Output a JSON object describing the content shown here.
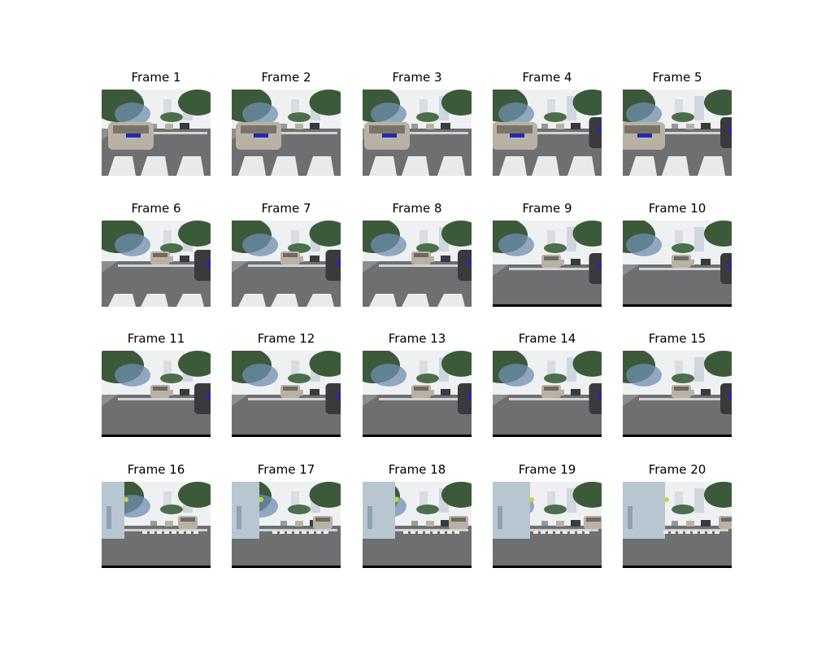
{
  "frames": [
    {
      "title": "Frame 1",
      "scene": "crosswalk-near",
      "bottom_bar": false
    },
    {
      "title": "Frame 2",
      "scene": "crosswalk-near",
      "bottom_bar": false
    },
    {
      "title": "Frame 3",
      "scene": "crosswalk-near",
      "bottom_bar": false
    },
    {
      "title": "Frame 4",
      "scene": "crosswalk-near",
      "bottom_bar": false
    },
    {
      "title": "Frame 5",
      "scene": "crosswalk-near",
      "bottom_bar": false
    },
    {
      "title": "Frame 6",
      "scene": "crosswalk-mid",
      "bottom_bar": false
    },
    {
      "title": "Frame 7",
      "scene": "crosswalk-mid",
      "bottom_bar": false
    },
    {
      "title": "Frame 8",
      "scene": "crosswalk-mid",
      "bottom_bar": false
    },
    {
      "title": "Frame 9",
      "scene": "open-road",
      "bottom_bar": true
    },
    {
      "title": "Frame 10",
      "scene": "open-road",
      "bottom_bar": true
    },
    {
      "title": "Frame 11",
      "scene": "open-road",
      "bottom_bar": true
    },
    {
      "title": "Frame 12",
      "scene": "open-road",
      "bottom_bar": true
    },
    {
      "title": "Frame 13",
      "scene": "open-road",
      "bottom_bar": true
    },
    {
      "title": "Frame 14",
      "scene": "open-road",
      "bottom_bar": true
    },
    {
      "title": "Frame 15",
      "scene": "open-road",
      "bottom_bar": true
    },
    {
      "title": "Frame 16",
      "scene": "building-left",
      "bottom_bar": true
    },
    {
      "title": "Frame 17",
      "scene": "building-left",
      "bottom_bar": true
    },
    {
      "title": "Frame 18",
      "scene": "building-left",
      "bottom_bar": true
    },
    {
      "title": "Frame 19",
      "scene": "building-left",
      "bottom_bar": true
    },
    {
      "title": "Frame 20",
      "scene": "building-left",
      "bottom_bar": true
    }
  ],
  "colors": {
    "sky": "#eef0f2",
    "trees": "#3c5a3a",
    "trees_blue": "#6f8fb0",
    "road": "#6e6f70",
    "crosswalk": "#e8eaec",
    "car_silver": "#b9b2a4",
    "car_dark": "#3a3a3e",
    "building": "#b8c6d2"
  }
}
